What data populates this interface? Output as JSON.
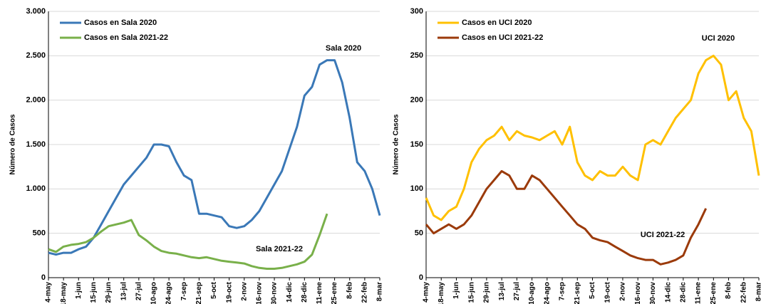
{
  "chart_data": [
    {
      "type": "line",
      "y_label": "Número de Casos",
      "categories": [
        "4-may",
        null,
        "18-may",
        null,
        "1-jun",
        null,
        "15-jun",
        null,
        "29-jun",
        null,
        "13-jul",
        null,
        "27-jul",
        null,
        "10-ago",
        null,
        "24-ago",
        null,
        "7-sep",
        null,
        "21-sep",
        null,
        "5-oct",
        null,
        "19-oct",
        null,
        "2-nov",
        null,
        "16-nov",
        null,
        "30-nov",
        null,
        "14-dic",
        null,
        "28-dic",
        null,
        "11-ene",
        null,
        "25-ene",
        null,
        "8-feb",
        null,
        "22-feb",
        null,
        "8-mar"
      ],
      "series": [
        {
          "name": "Casos en Sala 2020",
          "color": "#3a78b7",
          "values": [
            280,
            260,
            280,
            280,
            320,
            350,
            450,
            600,
            750,
            900,
            1050,
            1150,
            1250,
            1350,
            1500,
            1500,
            1480,
            1300,
            1150,
            1100,
            720,
            720,
            700,
            680,
            580,
            560,
            580,
            650,
            750,
            900,
            1050,
            1200,
            1450,
            1700,
            2050,
            2150,
            2400,
            2450,
            2450,
            2200,
            1800,
            1300,
            1200,
            1000,
            700
          ]
        },
        {
          "name": "Casos en Sala 2021-22",
          "color": "#79b04a",
          "values": [
            320,
            290,
            350,
            370,
            380,
            400,
            450,
            520,
            580,
            600,
            620,
            650,
            480,
            420,
            350,
            300,
            280,
            270,
            250,
            230,
            220,
            230,
            210,
            190,
            180,
            170,
            160,
            130,
            110,
            100,
            100,
            110,
            130,
            150,
            180,
            260,
            480,
            720,
            null,
            null,
            null,
            null,
            null,
            null,
            null
          ]
        }
      ],
      "annotations": [
        "Sala 2020",
        "Sala 2021-22"
      ],
      "ylim": [
        0,
        3000
      ],
      "yticks": [
        0,
        500,
        {
          "value": 1000,
          "label": "1.000"
        },
        {
          "value": 1500,
          "label": "1.500"
        },
        {
          "value": 2000,
          "label": "2.000"
        },
        {
          "value": 2500,
          "label": "2.500"
        },
        {
          "value": 3000,
          "label": "3.000"
        }
      ],
      "grid": true
    },
    {
      "type": "line",
      "y_label": "Número de Casos",
      "categories": [
        "4-may",
        null,
        "18-may",
        null,
        "1-jun",
        null,
        "15-jun",
        null,
        "29-jun",
        null,
        "13-jul",
        null,
        "27-jul",
        null,
        "10-ago",
        null,
        "24-ago",
        null,
        "7-sep",
        null,
        "21-sep",
        null,
        "5-oct",
        null,
        "19-oct",
        null,
        "2-nov",
        null,
        "16-nov",
        null,
        "30-nov",
        null,
        "14-dic",
        null,
        "28-dic",
        null,
        "11-ene",
        null,
        "25-ene",
        null,
        "8-feb",
        null,
        "22-feb",
        null,
        "8-mar"
      ],
      "series": [
        {
          "name": "Casos en UCI 2020",
          "color": "#ffc000",
          "values": [
            90,
            70,
            65,
            75,
            80,
            100,
            130,
            145,
            155,
            160,
            170,
            155,
            165,
            160,
            158,
            155,
            160,
            165,
            150,
            170,
            130,
            115,
            110,
            120,
            115,
            115,
            125,
            115,
            110,
            150,
            155,
            150,
            165,
            180,
            190,
            200,
            230,
            245,
            250,
            240,
            200,
            210,
            180,
            165,
            115
          ]
        },
        {
          "name": "Casos en UCI 2021-22",
          "color": "#9b3a0a",
          "values": [
            60,
            50,
            55,
            60,
            55,
            60,
            70,
            85,
            100,
            110,
            120,
            115,
            100,
            100,
            115,
            110,
            100,
            90,
            80,
            70,
            60,
            55,
            45,
            42,
            40,
            35,
            30,
            25,
            22,
            20,
            20,
            15,
            17,
            20,
            25,
            45,
            60,
            78,
            null,
            null,
            null,
            null,
            null,
            null,
            null
          ]
        }
      ],
      "annotations": [
        "UCI 2020",
        "UCI 2021-22"
      ],
      "ylim": [
        0,
        300
      ],
      "yticks": [
        0,
        50,
        100,
        150,
        200,
        250,
        300
      ],
      "grid": true
    }
  ]
}
